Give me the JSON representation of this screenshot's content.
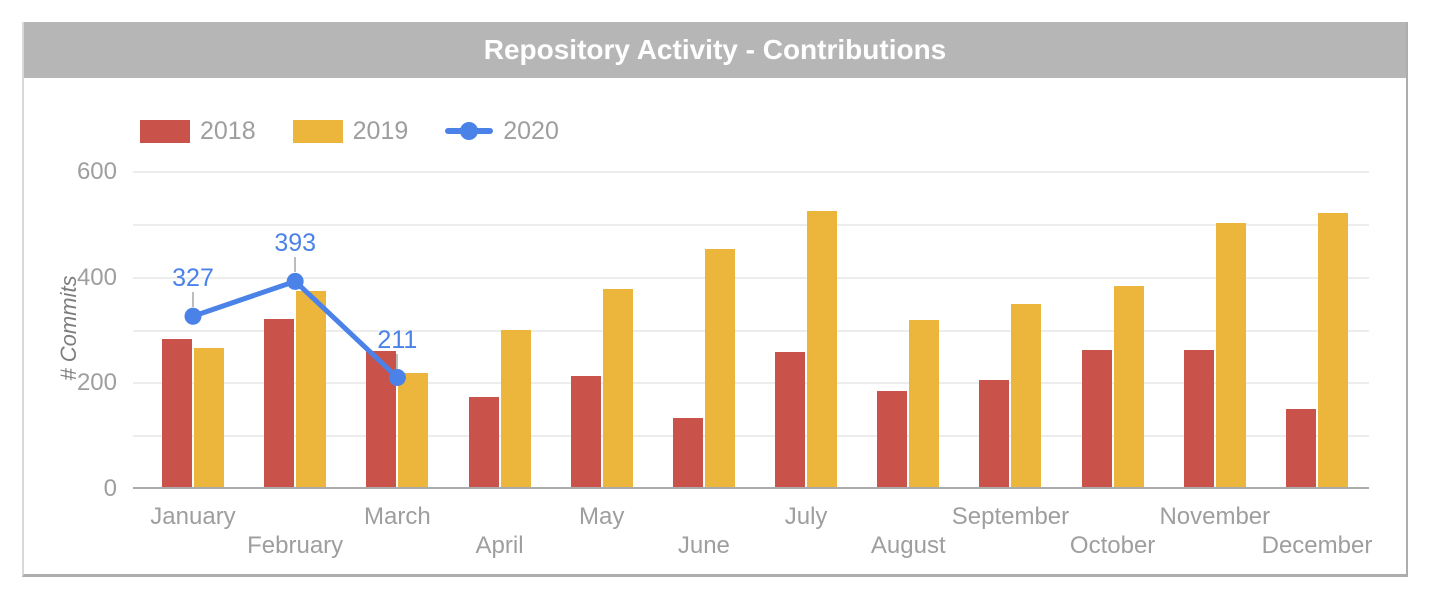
{
  "chart_data": {
    "type": "bar+line",
    "title": "Repository Activity - Contributions",
    "xlabel": "",
    "ylabel": "# Commits",
    "ylim": [
      0,
      600
    ],
    "yticks": [
      0,
      200,
      400,
      600
    ],
    "gridlines_every": 100,
    "grid": true,
    "legend_position": "top-left",
    "categories": [
      "January",
      "February",
      "March",
      "April",
      "May",
      "June",
      "July",
      "August",
      "September",
      "October",
      "November",
      "December"
    ],
    "series": [
      {
        "name": "2018",
        "type": "bar",
        "color": "#c9524a",
        "values": [
          280,
          318,
          258,
          170,
          210,
          131,
          256,
          181,
          202,
          260,
          260,
          148
        ]
      },
      {
        "name": "2019",
        "type": "bar",
        "color": "#ecb63d",
        "values": [
          263,
          371,
          216,
          297,
          375,
          450,
          522,
          316,
          347,
          381,
          500,
          519
        ]
      },
      {
        "name": "2020",
        "type": "line",
        "color": "#4a82e8",
        "values": [
          327,
          393,
          211,
          null,
          null,
          null,
          null,
          null,
          null,
          null,
          null,
          null
        ],
        "point_labels": [
          "327",
          "393",
          "211"
        ]
      }
    ]
  },
  "colors": {
    "title_bar": "#b6b6b6",
    "title_text": "#ffffff",
    "axis_text": "#9e9e9e",
    "y_axis_title_text": "#7d7d7d",
    "gridline": "#ededed",
    "baseline": "#ababab",
    "label_stem": "#bdbdbd",
    "series_2018": "#c9524a",
    "series_2019": "#ecb63d",
    "series_2020": "#4a82e8"
  }
}
